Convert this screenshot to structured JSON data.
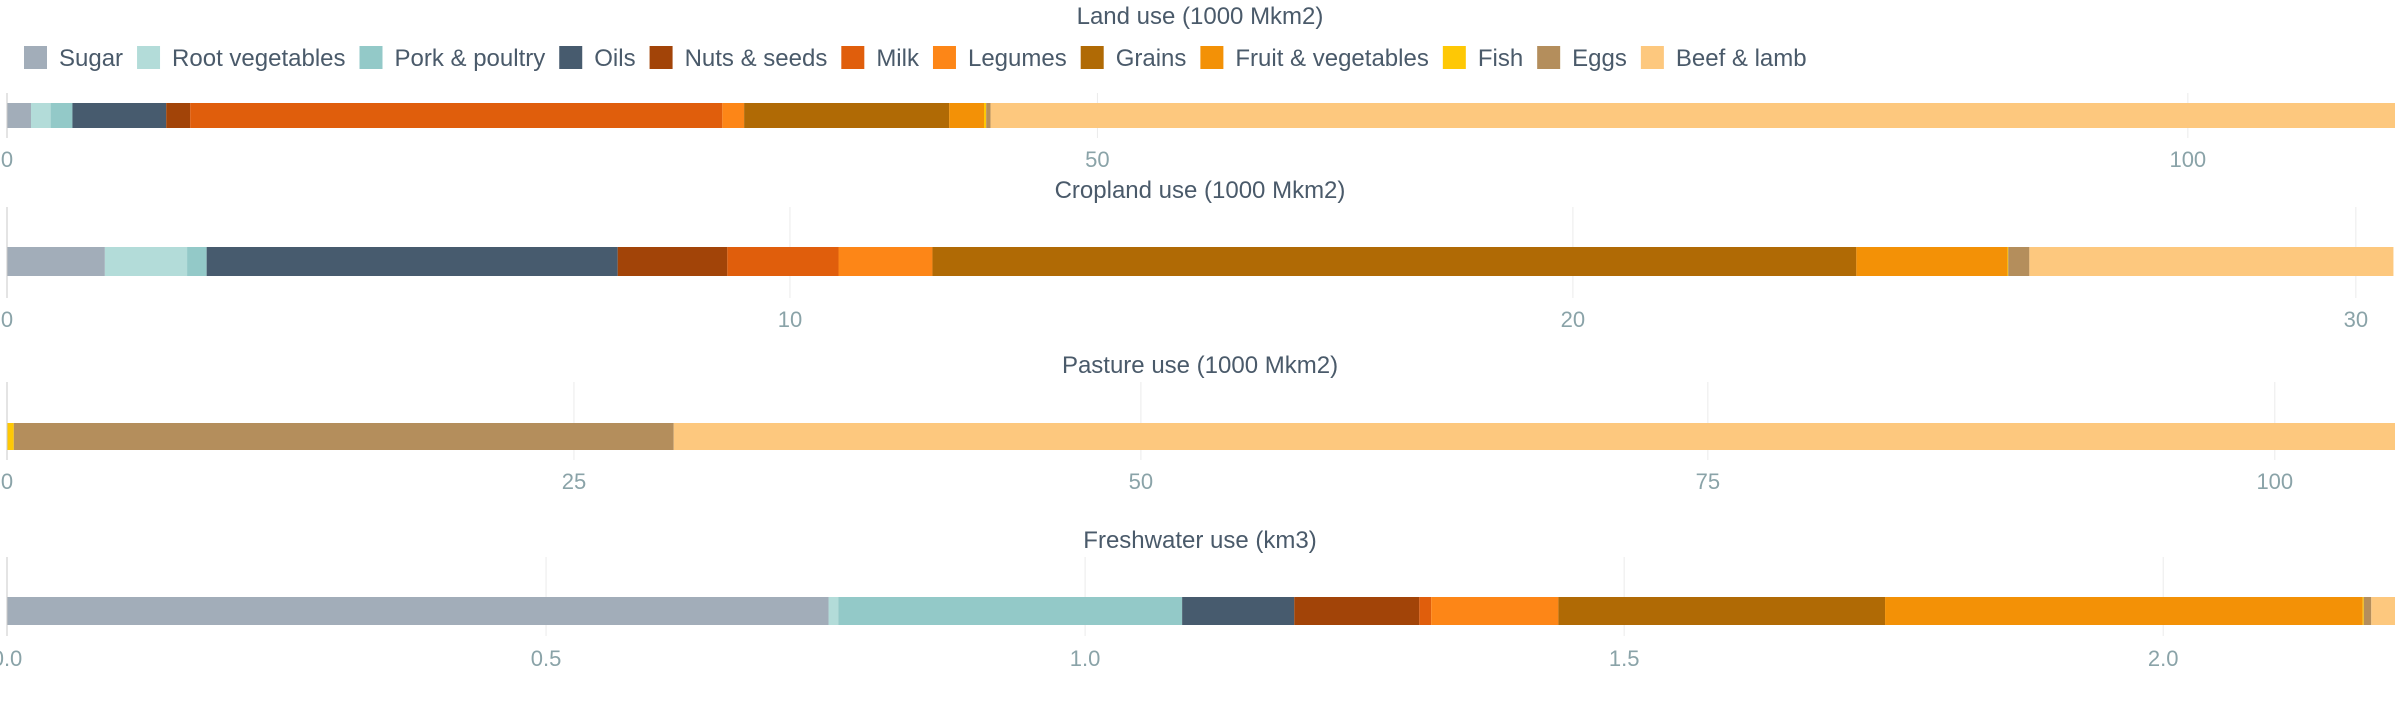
{
  "colors": {
    "Sugar": "#a2adb9",
    "Root vegetables": "#b3dcd9",
    "Pork & poultry": "#93c9c8",
    "Oils": "#475b6e",
    "Nuts & seeds": "#a24408",
    "Milk": "#e05e0c",
    "Legumes": "#fd8617",
    "Grains": "#b06a05",
    "Fruit & vegetables": "#f39106",
    "Fish": "#fec805",
    "Eggs": "#b48e5c",
    "Beef & lamb": "#fdc87e"
  },
  "chart_data": {
    "type": "bar",
    "orientation": "horizontal-stacked",
    "legend": {
      "placement": "top-left",
      "entries": [
        "Sugar",
        "Root vegetables",
        "Pork & poultry",
        "Oils",
        "Nuts & seeds",
        "Milk",
        "Legumes",
        "Grains",
        "Fruit & vegetables",
        "Fish",
        "Eggs",
        "Beef & lamb"
      ]
    },
    "grid": true,
    "panels": [
      {
        "title": "Land use (1000 Mkm2)",
        "xlim": [
          0,
          109.5
        ],
        "ticks": [
          0,
          50,
          100
        ],
        "tick_labels": [
          "0",
          "50",
          "100"
        ],
        "values": [
          1.1,
          0.9,
          1.0,
          4.3,
          1.1,
          24.4,
          1.0,
          9.4,
          1.6,
          0.1,
          0.2,
          64.4
        ]
      },
      {
        "title": "Cropland use (1000 Mkm2)",
        "xlim": [
          0,
          30.5
        ],
        "ticks": [
          0,
          10,
          20,
          30
        ],
        "tick_labels": [
          "0",
          "10",
          "20",
          "30"
        ],
        "values": [
          1.25,
          1.05,
          0.25,
          5.25,
          1.4,
          1.42,
          1.2,
          11.8,
          1.93,
          0.01,
          0.27,
          4.65
        ]
      },
      {
        "title": "Pasture use (1000 Mkm2)",
        "xlim": [
          0,
          105.3
        ],
        "ticks": [
          0,
          25,
          50,
          75,
          100
        ],
        "tick_labels": [
          "0",
          "25",
          "50",
          "75",
          "100"
        ],
        "values": [
          0,
          0,
          0,
          0,
          0,
          0,
          0,
          0,
          0,
          0.3,
          29.1,
          75.9
        ]
      },
      {
        "title": "Freshwater use (km3)",
        "xlim": [
          0,
          2.215
        ],
        "ticks": [
          0,
          0.5,
          1.0,
          1.5,
          2.0
        ],
        "tick_labels": [
          "0.0",
          "0.5",
          "1.0",
          "1.5",
          "2.0"
        ],
        "values": [
          0.762,
          0.009,
          0.319,
          0.104,
          0.116,
          0.011,
          0.118,
          0.303,
          0.443,
          0.001,
          0.007,
          0.022
        ]
      }
    ]
  }
}
